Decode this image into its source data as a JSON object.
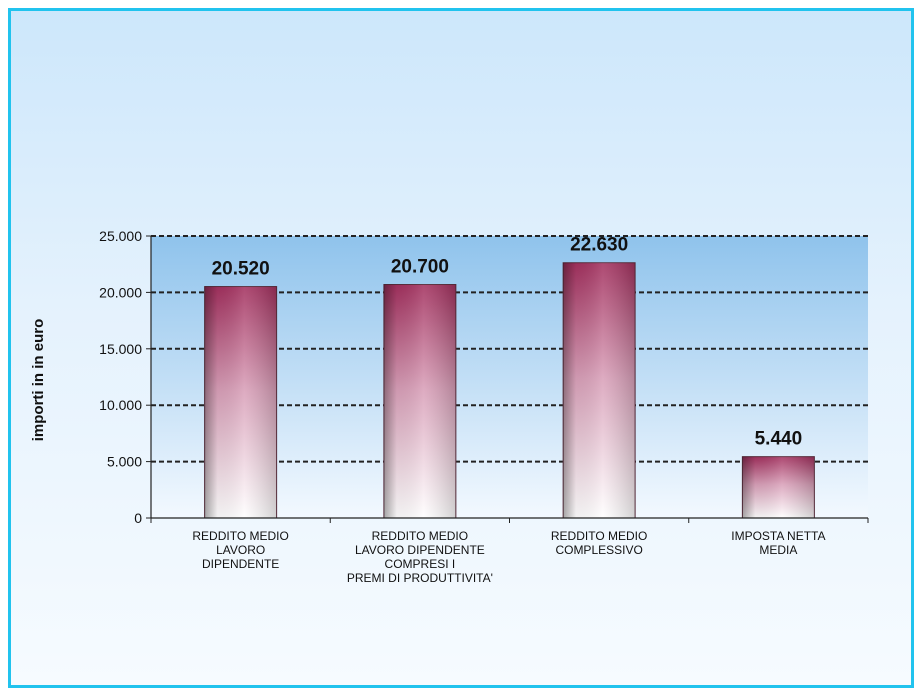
{
  "chart_data": {
    "type": "bar",
    "categories": [
      [
        "REDDITO MEDIO",
        "LAVORO",
        "DIPENDENTE"
      ],
      [
        "REDDITO MEDIO",
        "LAVORO DIPENDENTE",
        "COMPRESI I",
        "PREMI DI PRODUTTIVITA'"
      ],
      [
        "REDDITO MEDIO",
        "COMPLESSIVO"
      ],
      [
        "IMPOSTA NETTA",
        "MEDIA"
      ]
    ],
    "values": [
      20520,
      20700,
      22630,
      5440
    ],
    "value_labels": [
      "20.520",
      "20.700",
      "22.630",
      "5.440"
    ],
    "ylabel": "importi in in euro",
    "ylim": [
      0,
      25000
    ],
    "yticks": [
      0,
      5000,
      10000,
      15000,
      20000,
      25000
    ],
    "ytick_labels": [
      "0",
      "5.000",
      "10.000",
      "15.000",
      "20.000",
      "25.000"
    ],
    "grid": true,
    "colors": {
      "frame_border": "#21c3ee",
      "bar_top": "#a3315f",
      "bar_bottom": "#ffffff",
      "plot_top": "#8fc3ec",
      "plot_bottom": "#f3f9ff"
    }
  }
}
